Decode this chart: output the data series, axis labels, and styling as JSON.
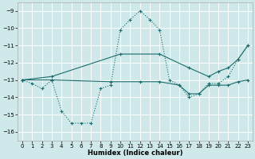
{
  "xlabel": "Humidex (Indice chaleur)",
  "xlim": [
    -0.5,
    23.5
  ],
  "ylim": [
    -16.5,
    -8.5
  ],
  "yticks": [
    -16,
    -15,
    -14,
    -13,
    -12,
    -11,
    -10,
    -9
  ],
  "xticks": [
    0,
    1,
    2,
    3,
    4,
    5,
    6,
    7,
    8,
    9,
    10,
    11,
    12,
    13,
    14,
    15,
    16,
    17,
    18,
    19,
    20,
    21,
    22,
    23
  ],
  "bg_color": "#cfe9ea",
  "grid_color": "#ffffff",
  "line_color": "#1a6b6b",
  "curve1_x": [
    0,
    1,
    2,
    3,
    4,
    5,
    6,
    7,
    8,
    9,
    10,
    11,
    12,
    13,
    14,
    15,
    16,
    17,
    18,
    19,
    20,
    21,
    22,
    23
  ],
  "curve1_y": [
    -13.0,
    -13.2,
    -13.5,
    -13.0,
    -14.8,
    -15.5,
    -15.5,
    -15.5,
    -13.5,
    -13.3,
    -10.1,
    -9.5,
    -9.0,
    -9.5,
    -10.1,
    -13.0,
    -13.3,
    -14.0,
    -13.8,
    -13.2,
    -13.2,
    -12.8,
    -11.8,
    -11.0
  ],
  "line2_x": [
    0,
    3,
    10,
    14,
    17,
    19,
    20,
    21,
    22,
    23
  ],
  "line2_y": [
    -13.0,
    -12.8,
    -11.5,
    -11.5,
    -12.3,
    -12.8,
    -12.5,
    -12.3,
    -11.8,
    -11.0
  ],
  "line3_x": [
    0,
    3,
    9,
    12,
    14,
    16,
    17,
    18,
    19,
    20,
    21,
    22,
    23
  ],
  "line3_y": [
    -13.0,
    -13.0,
    -13.1,
    -13.1,
    -13.1,
    -13.3,
    -13.8,
    -13.8,
    -13.3,
    -13.3,
    -13.3,
    -13.1,
    -13.0
  ]
}
